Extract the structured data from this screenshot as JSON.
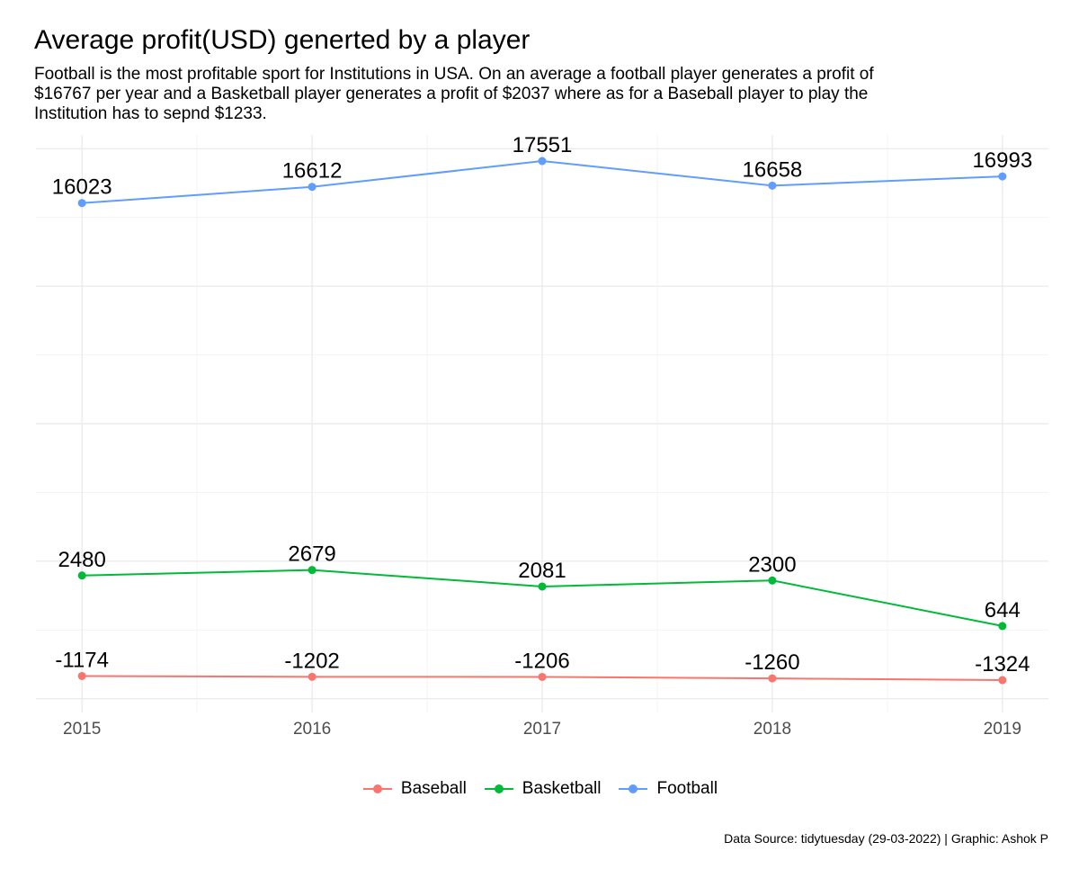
{
  "title": "Average profit(USD) generted by a player",
  "subtitle": "Football is the most profitable sport for Institutions in USA. On an average a football player generates a profit of $16767 per year and a Basketball player generates a profit of $2037 where as for a Baseball player to play the Institution has to sepnd $1233.",
  "caption": "Data Source: tidytuesday (29-03-2022) | Graphic: Ashok P",
  "chart_data": {
    "type": "line",
    "title": "Average profit(USD) generted by a player",
    "x": [
      2015,
      2016,
      2017,
      2018,
      2019
    ],
    "xlim": [
      2014.8,
      2019.2
    ],
    "ylim": [
      -2500,
      18500
    ],
    "grid": true,
    "legend_position": "bottom",
    "series": [
      {
        "name": "Baseball",
        "color": "#F8766D",
        "values": [
          -1174,
          -1202,
          -1206,
          -1260,
          -1324
        ]
      },
      {
        "name": "Basketball",
        "color": "#00BA38",
        "values": [
          2480,
          2679,
          2081,
          2300,
          644
        ]
      },
      {
        "name": "Football",
        "color": "#619CFF",
        "values": [
          16023,
          16612,
          17551,
          16658,
          16993
        ]
      }
    ]
  }
}
